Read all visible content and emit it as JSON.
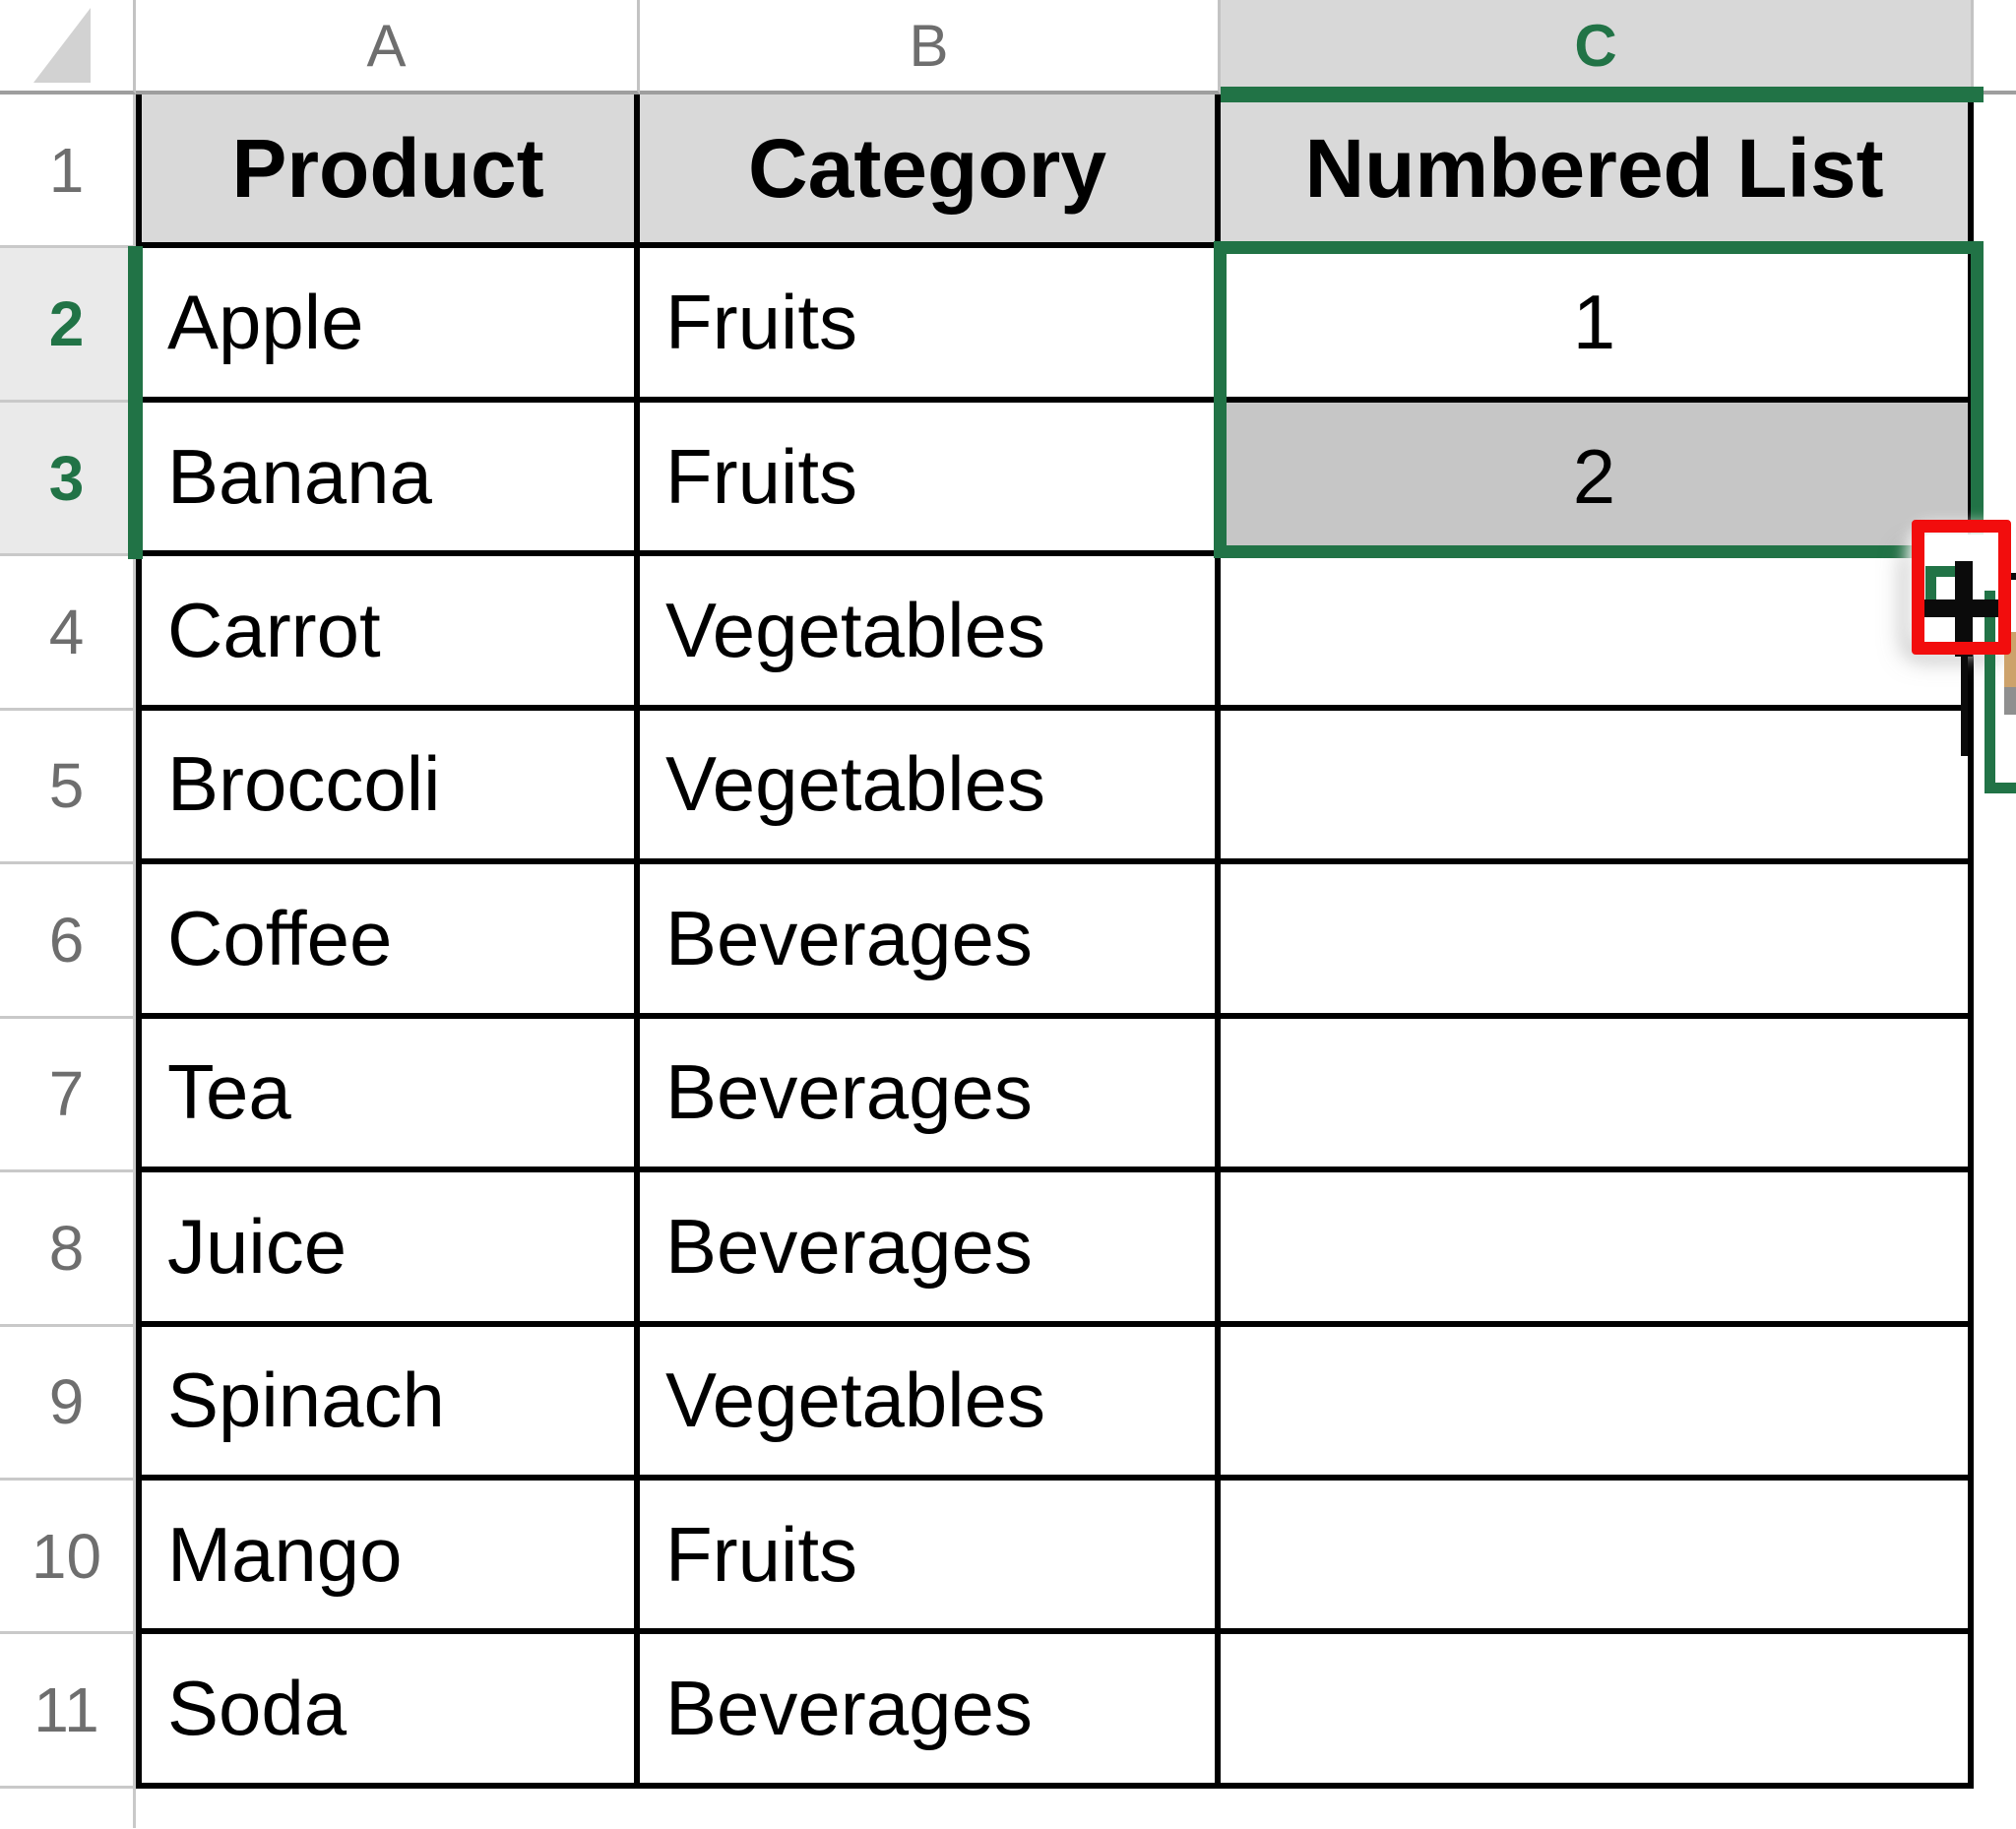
{
  "app": {
    "type": "spreadsheet-worksheet"
  },
  "colors": {
    "accent_green": "#217346",
    "annotation_red": "#f20d0d",
    "header_row_fill": "#d9d9d9",
    "selected_range_fill": "#c6c6c6",
    "selected_column_header_fill": "#d8d8d8",
    "selected_row_header_fill": "#eaeaea",
    "grid_border": "#000000"
  },
  "column_headers": [
    {
      "letter": "A",
      "selected": false
    },
    {
      "letter": "B",
      "selected": false
    },
    {
      "letter": "C",
      "selected": true
    }
  ],
  "row_headers": [
    "1",
    "2",
    "3",
    "4",
    "5",
    "6",
    "7",
    "8",
    "9",
    "10",
    "11"
  ],
  "selection": {
    "range": "C2:C3",
    "cursor": "fill-handle-plus"
  },
  "table": {
    "header_row": {
      "product": "Product",
      "category": "Category",
      "numbered_list": "Numbered List"
    },
    "rows": [
      {
        "product": "Apple",
        "category": "Fruits",
        "value": "1"
      },
      {
        "product": "Banana",
        "category": "Fruits",
        "value": "2"
      },
      {
        "product": "Carrot",
        "category": "Vegetables",
        "value": ""
      },
      {
        "product": "Broccoli",
        "category": "Vegetables",
        "value": ""
      },
      {
        "product": "Coffee",
        "category": "Beverages",
        "value": ""
      },
      {
        "product": "Tea",
        "category": "Beverages",
        "value": ""
      },
      {
        "product": "Juice",
        "category": "Beverages",
        "value": ""
      },
      {
        "product": "Spinach",
        "category": "Vegetables",
        "value": ""
      },
      {
        "product": "Mango",
        "category": "Fruits",
        "value": ""
      },
      {
        "product": "Soda",
        "category": "Beverages",
        "value": ""
      }
    ]
  }
}
